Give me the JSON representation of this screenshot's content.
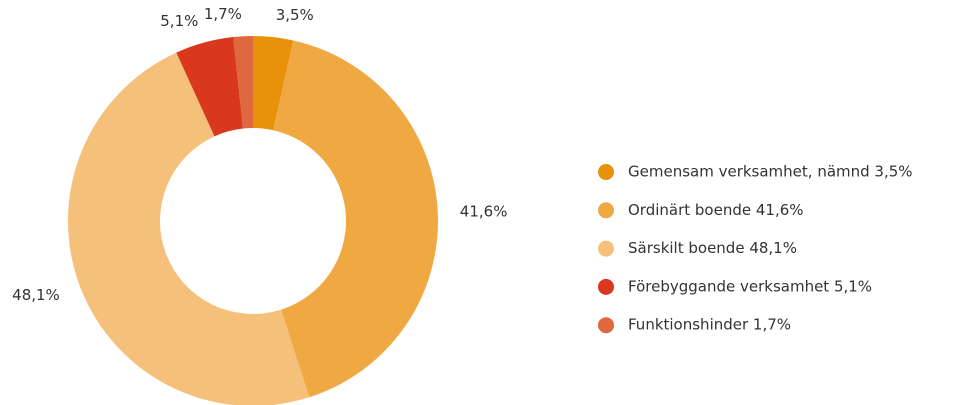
{
  "chart_data": {
    "type": "donut",
    "categories": [
      "Gemensam verksamhet, nämnd 3,5%",
      "Ordinärt boende 41,6%",
      "Särskilt boende 48,1%",
      "Förebyggande verksamhet 5,1%",
      "Funktionshinder 1,7%"
    ],
    "values": [
      3.5,
      41.6,
      48.1,
      5.1,
      1.7
    ],
    "value_labels": [
      "3,5%",
      "41,6%",
      "48,1%",
      "5,1%",
      "1,7%"
    ],
    "colors": [
      "#e8920c",
      "#f0a942",
      "#f5c07a",
      "#d9381e",
      "#e0683f"
    ],
    "legend": "right"
  }
}
